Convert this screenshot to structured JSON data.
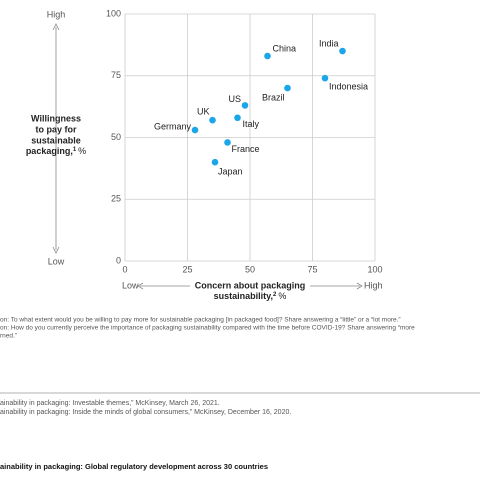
{
  "chart_data": {
    "type": "scatter",
    "y_label": {
      "lines": [
        "Willingness",
        "to pay for",
        "sustainable",
        "packaging,"
      ],
      "note": "1",
      "unit": "%"
    },
    "x_label": {
      "lines": [
        "Concern about packaging",
        "sustainability,"
      ],
      "note": "2",
      "unit": "%"
    },
    "y_high": "High",
    "y_low": "Low",
    "x_low": "Low",
    "x_high": "High",
    "labels": [
      "India",
      "China",
      "Indonesia",
      "Brazil",
      "US",
      "Italy",
      "UK",
      "Germany",
      "France",
      "Japan"
    ],
    "x": [
      87,
      57,
      80,
      65,
      48,
      45,
      35,
      28,
      41,
      36
    ],
    "values": [
      85,
      83,
      74,
      70,
      63,
      58,
      57,
      53,
      48,
      40
    ],
    "color": "#1ba6e8",
    "xlim": [
      0,
      100
    ],
    "xticks": [
      0,
      25,
      50,
      75,
      100
    ],
    "ylim": [
      0,
      100
    ],
    "yticks": [
      0,
      25,
      50,
      75,
      100
    ],
    "grid": true
  },
  "footnotes": [
    "on: To what extent would you be willing to pay more for sustainable packaging [in packaged food]? Share answering a “little” or a “lot more.”",
    "on: How do you currently perceive the importance of packaging sustainability compared with the time before COVID-19? Share answering “more",
    "rned.”"
  ],
  "sources": [
    "ainability in packaging: Investable themes,” McKinsey, March 26, 2021.",
    "ainability in packaging: Inside the minds of global consumers,” McKinsey, December 16, 2020."
  ],
  "related": "ainability in packaging: Global regulatory development across 30 countries"
}
